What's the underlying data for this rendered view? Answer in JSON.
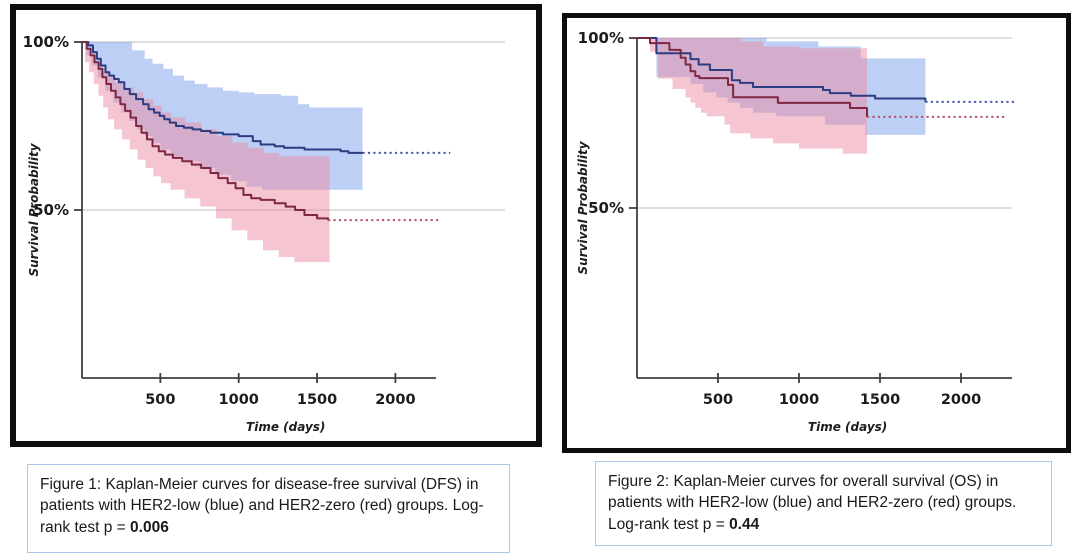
{
  "colors": {
    "frame": "#0e0e0e",
    "axis": "#3f3f3f",
    "grid": "#c9c9c9",
    "tick_text": "#1d1d1d",
    "caption_border": "#a9c7ea",
    "caption_text": "#1a1a1a",
    "blue_line": "#2d3c80",
    "blue_dotted": "#4a57a6",
    "blue_band": "rgba(128,163,233,0.52)",
    "red_line": "#7e2742",
    "red_dotted": "#b4506a",
    "red_band": "rgba(236,139,164,0.5)"
  },
  "captions": [
    {
      "text": "Figure 1: Kaplan-Meier curves for disease-free survival (DFS) in patients with HER2-low (blue) and HER2-zero (red) groups. Log-rank test p = ",
      "pvalue": "0.006"
    },
    {
      "text": "Figure 2: Kaplan-Meier curves for overall survival (OS) in patients with HER2-low (blue) and HER2-zero (red) groups. Log-rank test p = ",
      "pvalue": "0.44"
    }
  ],
  "chart_data": [
    {
      "type": "line",
      "subtype": "kaplan-meier-step",
      "figure_label": "Figure 1",
      "outcome": "Disease-free survival (DFS)",
      "title": "",
      "xlabel": "Time (days)",
      "ylabel": "Survival Probability",
      "xticks": [
        500,
        1000,
        1500,
        2000
      ],
      "yticks": [
        {
          "value": 100,
          "label": "100%"
        },
        {
          "value": 50,
          "label": "50%"
        }
      ],
      "xlim": [
        0,
        2350
      ],
      "ylim": [
        0,
        100
      ],
      "grid": "horizontal-at-yticks",
      "legend_position": "none",
      "series": [
        {
          "name": "HER2-low",
          "color_key": "blue",
          "steps": [
            [
              0,
              100
            ],
            [
              40,
              99
            ],
            [
              70,
              97
            ],
            [
              95,
              95
            ],
            [
              120,
              93
            ],
            [
              150,
              91
            ],
            [
              175,
              90
            ],
            [
              205,
              89
            ],
            [
              235,
              88
            ],
            [
              270,
              86
            ],
            [
              305,
              84.5
            ],
            [
              345,
              83
            ],
            [
              390,
              81.5
            ],
            [
              425,
              80
            ],
            [
              460,
              79
            ],
            [
              495,
              78
            ],
            [
              525,
              77
            ],
            [
              560,
              76
            ],
            [
              600,
              75
            ],
            [
              650,
              74.5
            ],
            [
              705,
              74
            ],
            [
              760,
              73.5
            ],
            [
              820,
              73
            ],
            [
              900,
              72.5
            ],
            [
              1000,
              72
            ],
            [
              1090,
              70.5
            ],
            [
              1140,
              69.5
            ],
            [
              1230,
              69
            ],
            [
              1290,
              68.5
            ],
            [
              1420,
              68
            ],
            [
              1650,
              67.5
            ],
            [
              1700,
              67
            ],
            [
              1790,
              67
            ]
          ],
          "censored_value": 67,
          "censored_to": 2350,
          "band_upper": [
            [
              0,
              100
            ],
            [
              260,
              100
            ],
            [
              320,
              97.5
            ],
            [
              400,
              95
            ],
            [
              450,
              93.5
            ],
            [
              520,
              92
            ],
            [
              580,
              90
            ],
            [
              650,
              88.5
            ],
            [
              720,
              87.5
            ],
            [
              800,
              86.5
            ],
            [
              900,
              85.5
            ],
            [
              1000,
              85
            ],
            [
              1100,
              84.5
            ],
            [
              1270,
              84
            ],
            [
              1380,
              81.5
            ],
            [
              1450,
              80.5
            ],
            [
              1790,
              80.5
            ]
          ],
          "band_lower": [
            [
              0,
              100
            ],
            [
              30,
              96
            ],
            [
              60,
              93
            ],
            [
              100,
              89.5
            ],
            [
              150,
              85.5
            ],
            [
              200,
              82
            ],
            [
              250,
              79
            ],
            [
              300,
              76.5
            ],
            [
              350,
              74
            ],
            [
              400,
              72
            ],
            [
              450,
              70
            ],
            [
              500,
              68
            ],
            [
              570,
              66
            ],
            [
              650,
              64.5
            ],
            [
              750,
              62.5
            ],
            [
              850,
              60.5
            ],
            [
              950,
              58.5
            ],
            [
              1050,
              57
            ],
            [
              1150,
              56
            ],
            [
              1790,
              56
            ]
          ]
        },
        {
          "name": "HER2-zero",
          "color_key": "red",
          "steps": [
            [
              0,
              100
            ],
            [
              30,
              98
            ],
            [
              55,
              96
            ],
            [
              80,
              94
            ],
            [
              105,
              92
            ],
            [
              130,
              89.5
            ],
            [
              155,
              87.5
            ],
            [
              185,
              85.5
            ],
            [
              215,
              83.5
            ],
            [
              245,
              81.5
            ],
            [
              275,
              79.5
            ],
            [
              310,
              77.5
            ],
            [
              345,
              75
            ],
            [
              380,
              73
            ],
            [
              415,
              71
            ],
            [
              450,
              69
            ],
            [
              490,
              67.5
            ],
            [
              530,
              66.5
            ],
            [
              580,
              65.5
            ],
            [
              640,
              64.5
            ],
            [
              700,
              63.5
            ],
            [
              760,
              62.5
            ],
            [
              820,
              61
            ],
            [
              870,
              59.5
            ],
            [
              930,
              58
            ],
            [
              980,
              56.5
            ],
            [
              1030,
              54.5
            ],
            [
              1080,
              53.5
            ],
            [
              1140,
              53
            ],
            [
              1230,
              52
            ],
            [
              1300,
              51
            ],
            [
              1360,
              50
            ],
            [
              1420,
              48.5
            ],
            [
              1500,
              47.5
            ],
            [
              1570,
              47
            ]
          ],
          "censored_value": 47,
          "censored_to": 2290,
          "band_upper": [
            [
              0,
              100
            ],
            [
              25,
              98
            ],
            [
              50,
              96
            ],
            [
              90,
              94
            ],
            [
              130,
              91.5
            ],
            [
              170,
              89.5
            ],
            [
              210,
              88
            ],
            [
              260,
              86.5
            ],
            [
              330,
              85
            ],
            [
              390,
              83
            ],
            [
              455,
              81
            ],
            [
              510,
              79
            ],
            [
              570,
              77.5
            ],
            [
              660,
              76
            ],
            [
              760,
              74
            ],
            [
              860,
              72
            ],
            [
              960,
              70
            ],
            [
              1060,
              68.5
            ],
            [
              1160,
              67
            ],
            [
              1260,
              66
            ],
            [
              1580,
              66
            ]
          ],
          "band_lower": [
            [
              0,
              100
            ],
            [
              20,
              94
            ],
            [
              45,
              91
            ],
            [
              75,
              87.5
            ],
            [
              105,
              84
            ],
            [
              135,
              80.5
            ],
            [
              165,
              77
            ],
            [
              205,
              74
            ],
            [
              255,
              71
            ],
            [
              305,
              68
            ],
            [
              355,
              65
            ],
            [
              405,
              62.5
            ],
            [
              455,
              60
            ],
            [
              505,
              58
            ],
            [
              565,
              56
            ],
            [
              655,
              53.5
            ],
            [
              755,
              51
            ],
            [
              855,
              47.5
            ],
            [
              955,
              44
            ],
            [
              1055,
              41
            ],
            [
              1155,
              38
            ],
            [
              1255,
              36
            ],
            [
              1355,
              34.5
            ],
            [
              1580,
              34.5
            ]
          ]
        }
      ]
    },
    {
      "type": "line",
      "subtype": "kaplan-meier-step",
      "figure_label": "Figure 2",
      "outcome": "Overall survival (OS)",
      "title": "",
      "xlabel": "Time (days)",
      "ylabel": "Survival Probability",
      "xticks": [
        500,
        1000,
        1500,
        2000
      ],
      "yticks": [
        {
          "value": 100,
          "label": "100%"
        },
        {
          "value": 50,
          "label": "50%"
        }
      ],
      "xlim": [
        0,
        2330
      ],
      "ylim": [
        0,
        100
      ],
      "grid": "horizontal-at-yticks",
      "legend_position": "none",
      "series": [
        {
          "name": "HER2-low",
          "color_key": "blue",
          "steps": [
            [
              0,
              100
            ],
            [
              120,
              95.5
            ],
            [
              330,
              93.8
            ],
            [
              380,
              92.2
            ],
            [
              450,
              90.6
            ],
            [
              586,
              87.6
            ],
            [
              636,
              86.8
            ],
            [
              716,
              85.6
            ],
            [
              1148,
              84.7
            ],
            [
              1191,
              83.8
            ],
            [
              1320,
              83
            ],
            [
              1470,
              82.2
            ],
            [
              1780,
              81.2
            ]
          ],
          "censored_value": 81.2,
          "censored_to": 2330,
          "band_upper": [
            [
              0,
              100
            ],
            [
              680,
              100
            ],
            [
              800,
              99
            ],
            [
              1120,
              97.5
            ],
            [
              1380,
              94
            ],
            [
              1780,
              94
            ]
          ],
          "band_lower": [
            [
              0,
              100
            ],
            [
              120,
              88.5
            ],
            [
              330,
              86.5
            ],
            [
              410,
              84
            ],
            [
              490,
              82.5
            ],
            [
              560,
              81
            ],
            [
              636,
              79.5
            ],
            [
              716,
              78
            ],
            [
              860,
              77
            ],
            [
              1160,
              74.5
            ],
            [
              1410,
              71.5
            ],
            [
              1780,
              71.5
            ]
          ]
        },
        {
          "name": "HER2-zero",
          "color_key": "red",
          "steps": [
            [
              0,
              100
            ],
            [
              80,
              98.5
            ],
            [
              200,
              96.5
            ],
            [
              270,
              94.2
            ],
            [
              300,
              92.2
            ],
            [
              330,
              90.2
            ],
            [
              360,
              88.8
            ],
            [
              385,
              88.2
            ],
            [
              562,
              86.2
            ],
            [
              593,
              82.6
            ],
            [
              870,
              80.9
            ],
            [
              1315,
              79.4
            ],
            [
              1420,
              76.8
            ]
          ],
          "censored_value": 76.8,
          "censored_to": 2280,
          "band_upper": [
            [
              0,
              100
            ],
            [
              540,
              100
            ],
            [
              640,
              99
            ],
            [
              780,
              97.5
            ],
            [
              1000,
              97
            ],
            [
              1420,
              96.5
            ]
          ],
          "band_lower": [
            [
              0,
              100
            ],
            [
              80,
              96
            ],
            [
              130,
              88
            ],
            [
              220,
              85
            ],
            [
              300,
              82.5
            ],
            [
              330,
              81
            ],
            [
              360,
              79.5
            ],
            [
              395,
              78
            ],
            [
              430,
              77
            ],
            [
              540,
              74.5
            ],
            [
              575,
              72
            ],
            [
              700,
              70.5
            ],
            [
              840,
              69
            ],
            [
              1000,
              67.5
            ],
            [
              1270,
              66
            ],
            [
              1420,
              65.5
            ]
          ]
        }
      ]
    }
  ]
}
